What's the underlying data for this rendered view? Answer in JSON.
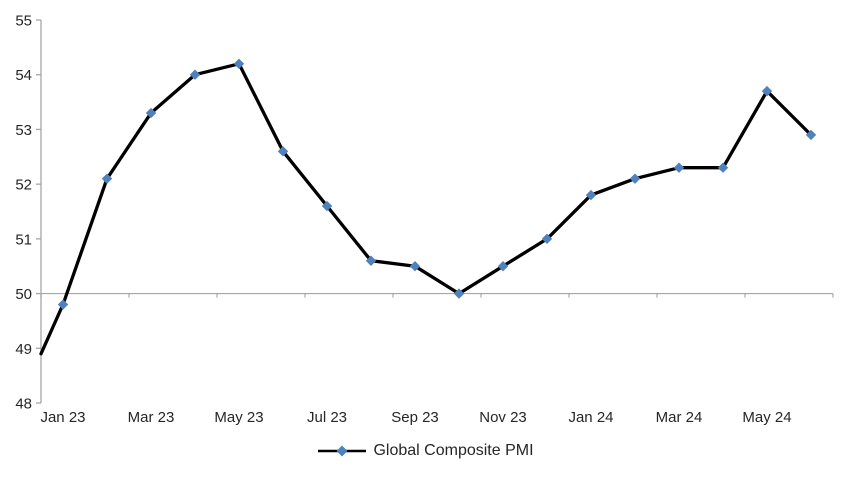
{
  "chart_data": {
    "type": "line",
    "title": "",
    "categories": [
      "Jan 23",
      "Feb 23",
      "Mar 23",
      "Apr 23",
      "May 23",
      "Jun 23",
      "Jul 23",
      "Aug 23",
      "Sep 23",
      "Oct 23",
      "Nov 23",
      "Dec 23",
      "Jan 24",
      "Feb 24",
      "Mar 24",
      "Apr 24",
      "May 24",
      "Jun 24"
    ],
    "series": [
      {
        "name": "Global Composite PMI",
        "values": [
          49.8,
          52.1,
          53.3,
          54.0,
          54.2,
          52.6,
          51.6,
          50.6,
          50.5,
          50.0,
          50.5,
          51.0,
          51.8,
          52.1,
          52.3,
          52.3,
          53.7,
          52.9
        ]
      }
    ],
    "left_edge_entry_value": 48.9,
    "xlabel": "",
    "ylabel": "",
    "ylim": [
      48,
      55
    ],
    "y_ticks": [
      48,
      49,
      50,
      51,
      52,
      53,
      54,
      55
    ],
    "x_tick_labels_shown": [
      "Jan 23",
      "Mar 23",
      "May 23",
      "Jul 23",
      "Sep 23",
      "Nov 23",
      "Jan 24",
      "Mar 24",
      "May 24"
    ],
    "x_label_every": 2,
    "x_axis_crosses_at": 50,
    "grid": "none",
    "legend_position": "bottom-center",
    "marker_shape": "diamond",
    "colors": {
      "line": "#000000",
      "marker": "#4F81BD",
      "axis": "#A6A6A6",
      "text": "#262626"
    }
  }
}
